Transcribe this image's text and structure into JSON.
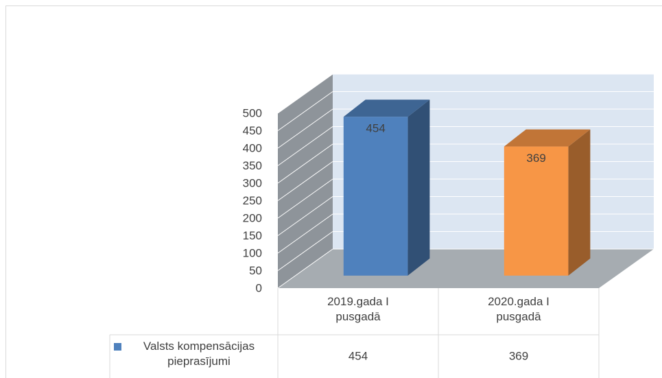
{
  "chart_data": {
    "type": "bar3d",
    "categories": [
      "2019.gada I pusgadā",
      "2020.gada I pusgadā"
    ],
    "series": [
      {
        "name": "Valsts kompensācijas pieprasījumi",
        "color": "#4f81bd",
        "colors": [
          "#4f81bd",
          "#f79646"
        ],
        "values": [
          454,
          369
        ]
      }
    ],
    "ylim": [
      0,
      500
    ],
    "yticks": [
      0,
      50,
      100,
      150,
      200,
      250,
      300,
      350,
      400,
      450,
      500
    ],
    "grid": true,
    "data_table": true
  }
}
